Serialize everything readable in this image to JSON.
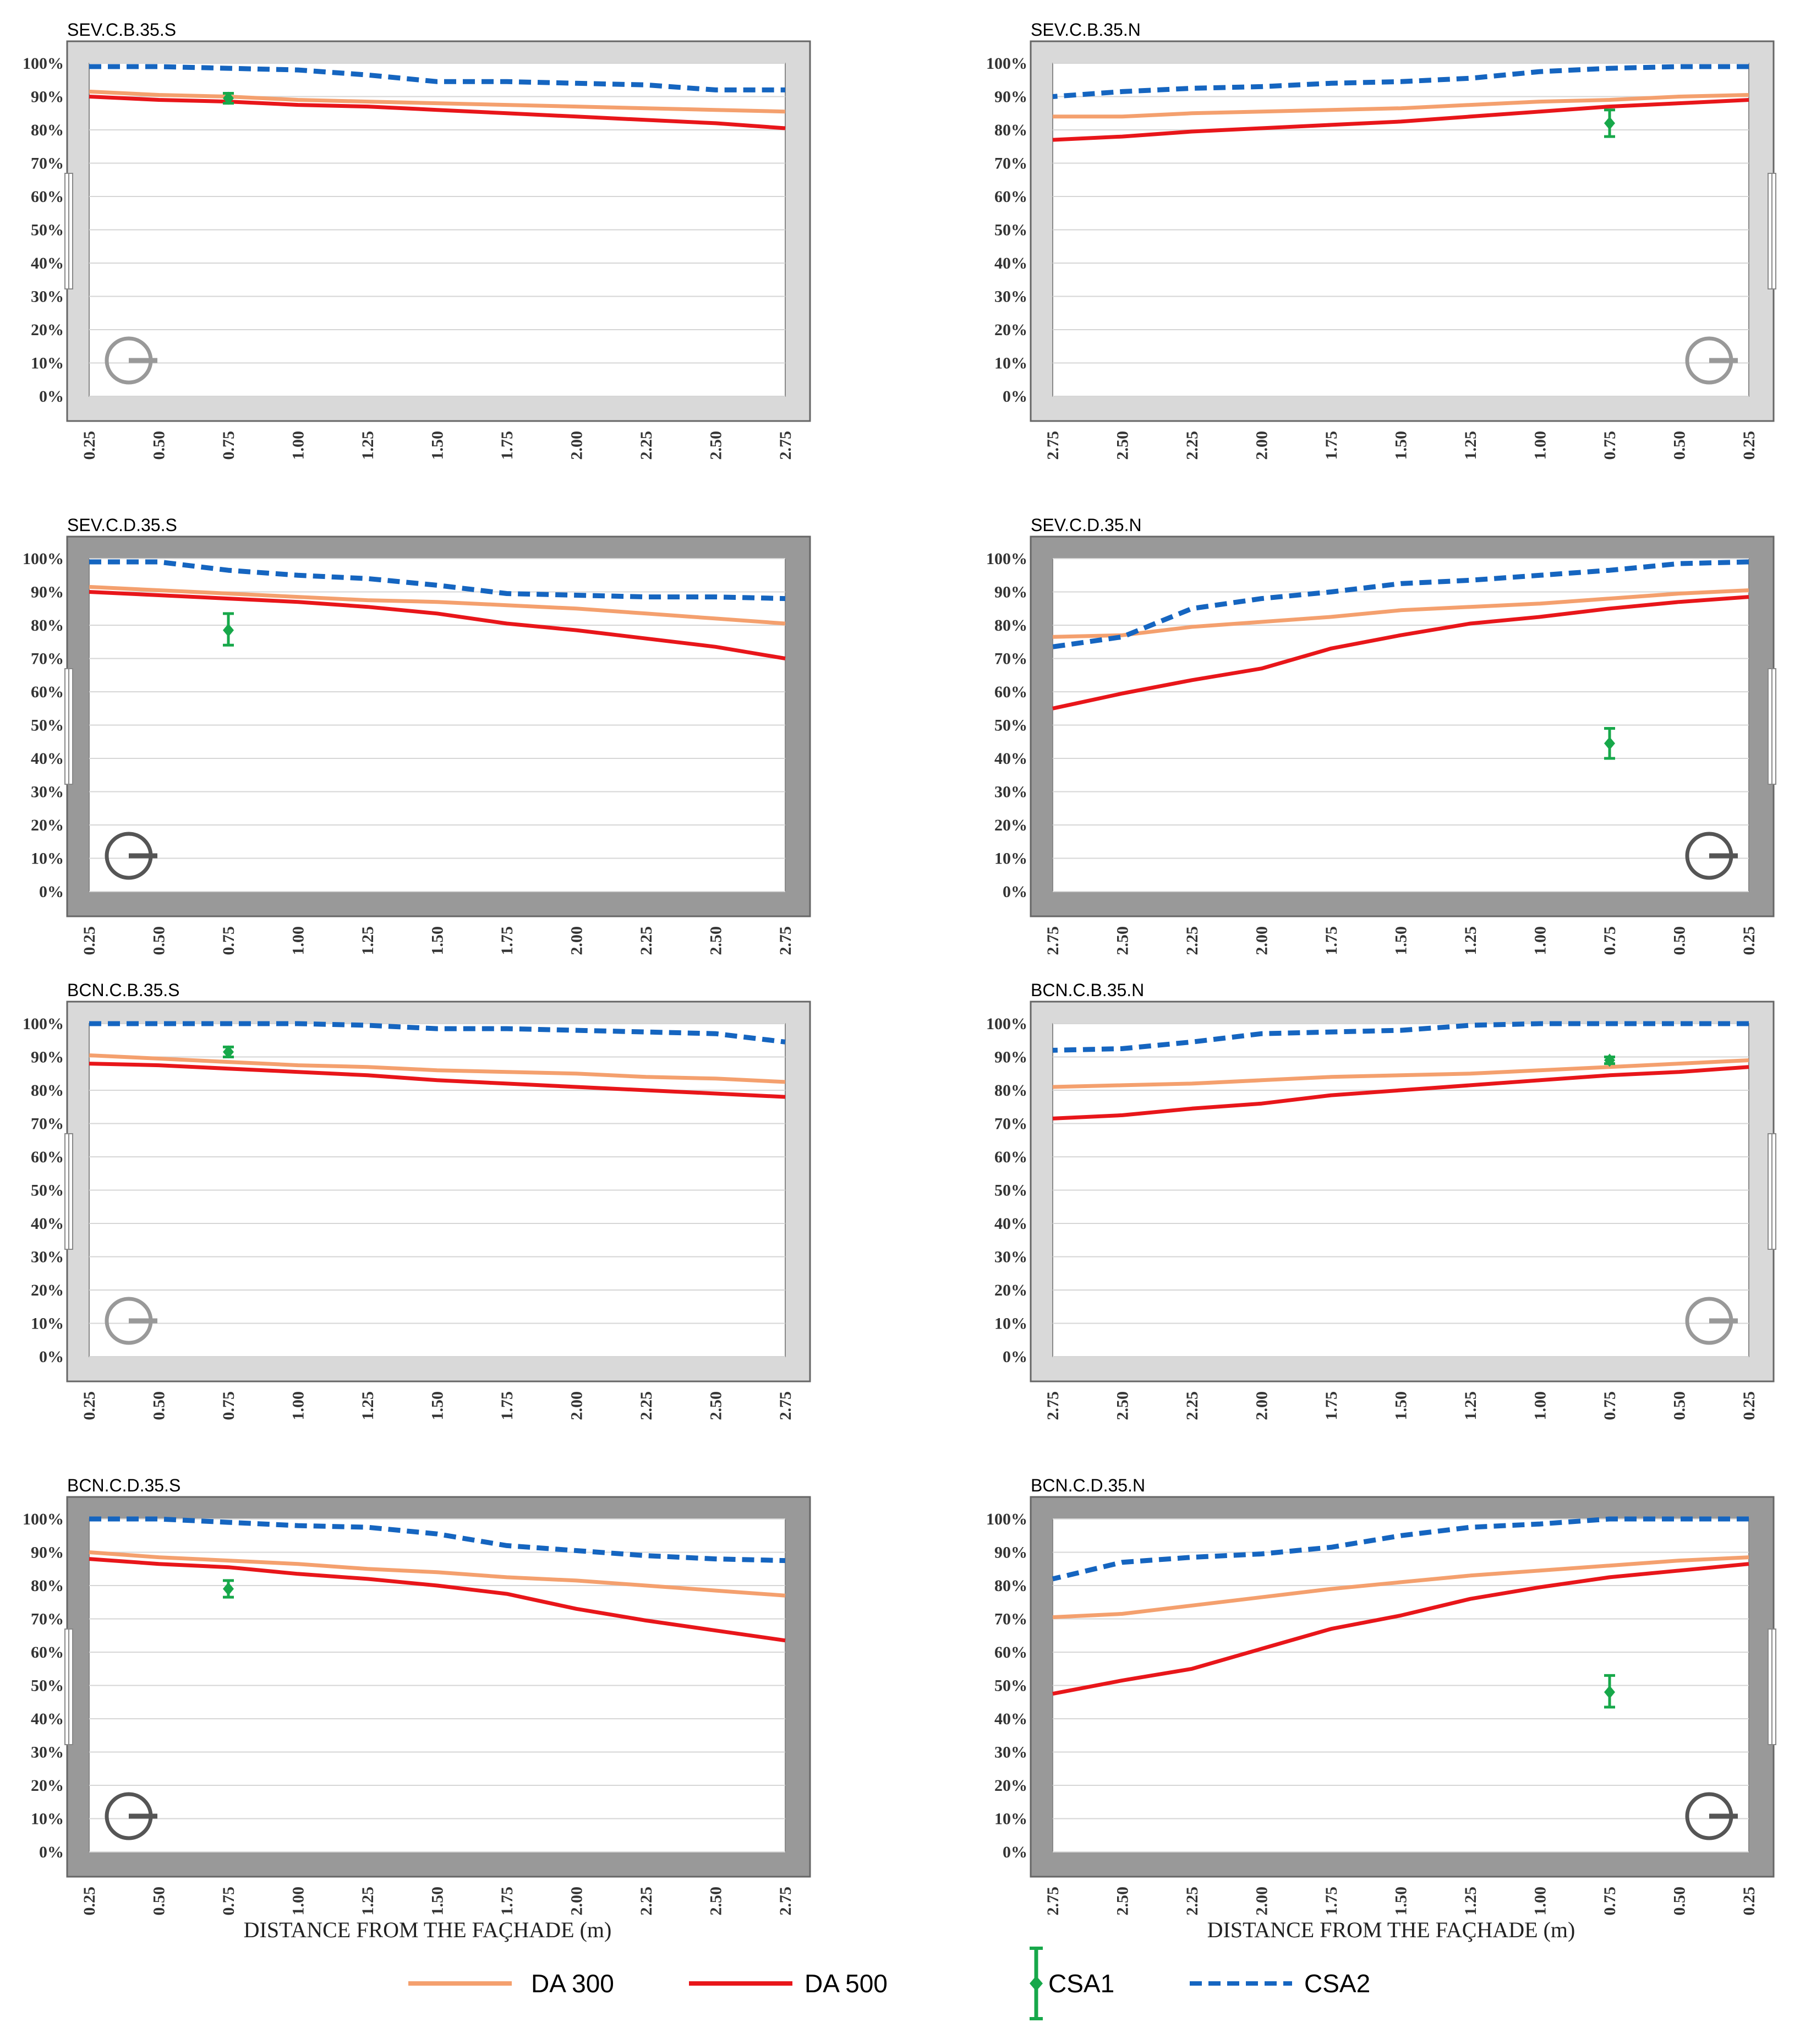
{
  "colors": {
    "da300": "#f4a06e",
    "da500": "#e8161a",
    "csa1": "#17a84a",
    "csa2": "#1565c0",
    "frame_light": "#d9d9d9",
    "frame_dark": "#999999"
  },
  "x_ticks": [
    "0.25",
    "0.50",
    "0.75",
    "1.00",
    "1.25",
    "1.50",
    "1.75",
    "2.00",
    "2.25",
    "2.50",
    "2.75"
  ],
  "y_ticks": [
    "0%",
    "10%",
    "20%",
    "30%",
    "40%",
    "50%",
    "60%",
    "70%",
    "80%",
    "90%",
    "100%"
  ],
  "legend": {
    "da300": "DA 300",
    "da500": "DA 500",
    "csa1": "CSA1",
    "csa2": "CSA2"
  },
  "chart_data": [
    {
      "type": "line",
      "title": "SEV.C.B.35.S",
      "xlabel": "",
      "ylabel": "",
      "x_order": "ascending",
      "frame": "light",
      "compass_side": "left",
      "ylim": [
        0,
        100
      ],
      "x": [
        0.25,
        0.5,
        0.75,
        1.0,
        1.25,
        1.5,
        1.75,
        2.0,
        2.25,
        2.5,
        2.75
      ],
      "series": [
        {
          "name": "DA 300",
          "values": [
            91.5,
            90.5,
            90,
            89,
            88.5,
            88,
            87.5,
            87,
            86.5,
            86,
            85.5
          ]
        },
        {
          "name": "DA 500",
          "values": [
            90,
            89,
            88.5,
            87.5,
            87,
            86,
            85,
            84,
            83,
            82,
            80.5
          ]
        },
        {
          "name": "CSA2",
          "values": [
            99,
            99,
            98.5,
            98,
            96.5,
            94.5,
            94.5,
            94,
            93.5,
            92,
            92
          ]
        }
      ],
      "csa1": {
        "x": 0.75,
        "value": 89.5,
        "low": 88,
        "high": 91
      }
    },
    {
      "type": "line",
      "title": "SEV.C.B.35.N",
      "xlabel": "",
      "ylabel": "",
      "x_order": "descending",
      "frame": "light",
      "compass_side": "right",
      "ylim": [
        0,
        100
      ],
      "x": [
        0.25,
        0.5,
        0.75,
        1.0,
        1.25,
        1.5,
        1.75,
        2.0,
        2.25,
        2.5,
        2.75
      ],
      "series": [
        {
          "name": "DA 300",
          "values": [
            90.5,
            90,
            89,
            88.5,
            87.5,
            86.5,
            86,
            85.5,
            85,
            84,
            84
          ]
        },
        {
          "name": "DA 500",
          "values": [
            89,
            88,
            87,
            85.5,
            84,
            82.5,
            81.5,
            80.5,
            79.5,
            78,
            77
          ]
        },
        {
          "name": "CSA2",
          "values": [
            99,
            99,
            98.5,
            97.5,
            95.5,
            94.5,
            94,
            93,
            92.5,
            91.5,
            90
          ]
        }
      ],
      "csa1": {
        "x": 0.75,
        "value": 82,
        "low": 78,
        "high": 86
      }
    },
    {
      "type": "line",
      "title": "SEV.C.D.35.S",
      "xlabel": "",
      "ylabel": "",
      "x_order": "ascending",
      "frame": "dark",
      "compass_side": "left",
      "ylim": [
        0,
        100
      ],
      "x": [
        0.25,
        0.5,
        0.75,
        1.0,
        1.25,
        1.5,
        1.75,
        2.0,
        2.25,
        2.5,
        2.75
      ],
      "series": [
        {
          "name": "DA 300",
          "values": [
            91.5,
            90.5,
            89.5,
            88.5,
            87.5,
            87,
            86,
            85,
            83.5,
            82,
            80.5
          ]
        },
        {
          "name": "DA 500",
          "values": [
            90,
            89,
            88,
            87,
            85.5,
            83.5,
            80.5,
            78.5,
            76,
            73.5,
            70
          ]
        },
        {
          "name": "CSA2",
          "values": [
            99,
            99,
            96.5,
            95,
            94,
            92,
            89.5,
            89,
            88.5,
            88.5,
            88
          ]
        }
      ],
      "csa1": {
        "x": 0.75,
        "value": 78.5,
        "low": 74,
        "high": 83.5
      }
    },
    {
      "type": "line",
      "title": "SEV.C.D.35.N",
      "xlabel": "",
      "ylabel": "",
      "x_order": "descending",
      "frame": "dark",
      "compass_side": "right",
      "ylim": [
        0,
        100
      ],
      "x": [
        0.25,
        0.5,
        0.75,
        1.0,
        1.25,
        1.5,
        1.75,
        2.0,
        2.25,
        2.5,
        2.75
      ],
      "series": [
        {
          "name": "DA 300",
          "values": [
            90.5,
            89.5,
            88,
            86.5,
            85.5,
            84.5,
            82.5,
            81,
            79.5,
            77,
            76.5
          ]
        },
        {
          "name": "DA 500",
          "values": [
            88.5,
            87,
            85,
            82.5,
            80.5,
            77,
            73,
            67,
            63.5,
            59.5,
            55
          ]
        },
        {
          "name": "CSA2",
          "values": [
            99,
            98.5,
            96.5,
            95,
            93.5,
            92.5,
            90,
            88,
            85,
            76.5,
            73.5
          ]
        }
      ],
      "csa1": {
        "x": 0.75,
        "value": 44.5,
        "low": 40,
        "high": 49
      }
    },
    {
      "type": "line",
      "title": "BCN.C.B.35.S",
      "xlabel": "",
      "ylabel": "",
      "x_order": "ascending",
      "frame": "light",
      "compass_side": "left",
      "ylim": [
        0,
        100
      ],
      "x": [
        0.25,
        0.5,
        0.75,
        1.0,
        1.25,
        1.5,
        1.75,
        2.0,
        2.25,
        2.5,
        2.75
      ],
      "series": [
        {
          "name": "DA 300",
          "values": [
            90.5,
            89.5,
            88.5,
            87.5,
            87,
            86,
            85.5,
            85,
            84,
            83.5,
            82.5
          ]
        },
        {
          "name": "DA 500",
          "values": [
            88,
            87.5,
            86.5,
            85.5,
            84.5,
            83,
            82,
            81,
            80,
            79,
            78
          ]
        },
        {
          "name": "CSA2",
          "values": [
            100,
            100,
            100,
            100,
            99.5,
            98.5,
            98.5,
            98,
            97.5,
            97,
            94.5
          ]
        }
      ],
      "csa1": {
        "x": 0.75,
        "value": 91.5,
        "low": 90,
        "high": 93
      }
    },
    {
      "type": "line",
      "title": "BCN.C.B.35.N",
      "xlabel": "",
      "ylabel": "",
      "x_order": "descending",
      "frame": "light",
      "compass_side": "right",
      "ylim": [
        0,
        100
      ],
      "x": [
        0.25,
        0.5,
        0.75,
        1.0,
        1.25,
        1.5,
        1.75,
        2.0,
        2.25,
        2.5,
        2.75
      ],
      "series": [
        {
          "name": "DA 300",
          "values": [
            89,
            88,
            87,
            86,
            85,
            84.5,
            84,
            83,
            82,
            81.5,
            81
          ]
        },
        {
          "name": "DA 500",
          "values": [
            87,
            85.5,
            84.5,
            83,
            81.5,
            80,
            78.5,
            76,
            74.5,
            72.5,
            71.5
          ]
        },
        {
          "name": "CSA2",
          "values": [
            100,
            100,
            100,
            100,
            99.5,
            98,
            97.5,
            97,
            94.5,
            92.5,
            92
          ]
        }
      ],
      "csa1": {
        "x": 0.75,
        "value": 89,
        "low": 88,
        "high": 90
      }
    },
    {
      "type": "line",
      "title": "BCN.C.D.35.S",
      "xlabel": "DISTANCE FROM THE FAÇHADE (m)",
      "ylabel": "",
      "x_order": "ascending",
      "frame": "dark",
      "compass_side": "left",
      "ylim": [
        0,
        100
      ],
      "x": [
        0.25,
        0.5,
        0.75,
        1.0,
        1.25,
        1.5,
        1.75,
        2.0,
        2.25,
        2.5,
        2.75
      ],
      "series": [
        {
          "name": "DA 300",
          "values": [
            90,
            88.5,
            87.5,
            86.5,
            85,
            84,
            82.5,
            81.5,
            80,
            78.5,
            77
          ]
        },
        {
          "name": "DA 500",
          "values": [
            88,
            86.5,
            85.5,
            83.5,
            82,
            80,
            77.5,
            73,
            69.5,
            66.5,
            63.5
          ]
        },
        {
          "name": "CSA2",
          "values": [
            100,
            100,
            99,
            98,
            97.5,
            95.5,
            92,
            90.5,
            89,
            88,
            87.5
          ]
        }
      ],
      "csa1": {
        "x": 0.75,
        "value": 79,
        "low": 76.5,
        "high": 81.5
      }
    },
    {
      "type": "line",
      "title": "BCN.C.D.35.N",
      "xlabel": "DISTANCE FROM THE FAÇHADE (m)",
      "ylabel": "",
      "x_order": "descending",
      "frame": "dark",
      "compass_side": "right",
      "ylim": [
        0,
        100
      ],
      "x": [
        0.25,
        0.5,
        0.75,
        1.0,
        1.25,
        1.5,
        1.75,
        2.0,
        2.25,
        2.5,
        2.75
      ],
      "series": [
        {
          "name": "DA 300",
          "values": [
            88.5,
            87.5,
            86,
            84.5,
            83,
            81,
            79,
            76.5,
            74,
            71.5,
            70.5
          ]
        },
        {
          "name": "DA 500",
          "values": [
            86.5,
            84.5,
            82.5,
            79.5,
            76,
            71,
            67,
            61,
            55,
            51.5,
            47.5
          ]
        },
        {
          "name": "CSA2",
          "values": [
            100,
            100,
            100,
            98.5,
            97.5,
            95,
            91.5,
            89.5,
            88.5,
            87,
            82
          ]
        }
      ],
      "csa1": {
        "x": 0.75,
        "value": 48,
        "low": 43.5,
        "high": 53
      }
    }
  ]
}
